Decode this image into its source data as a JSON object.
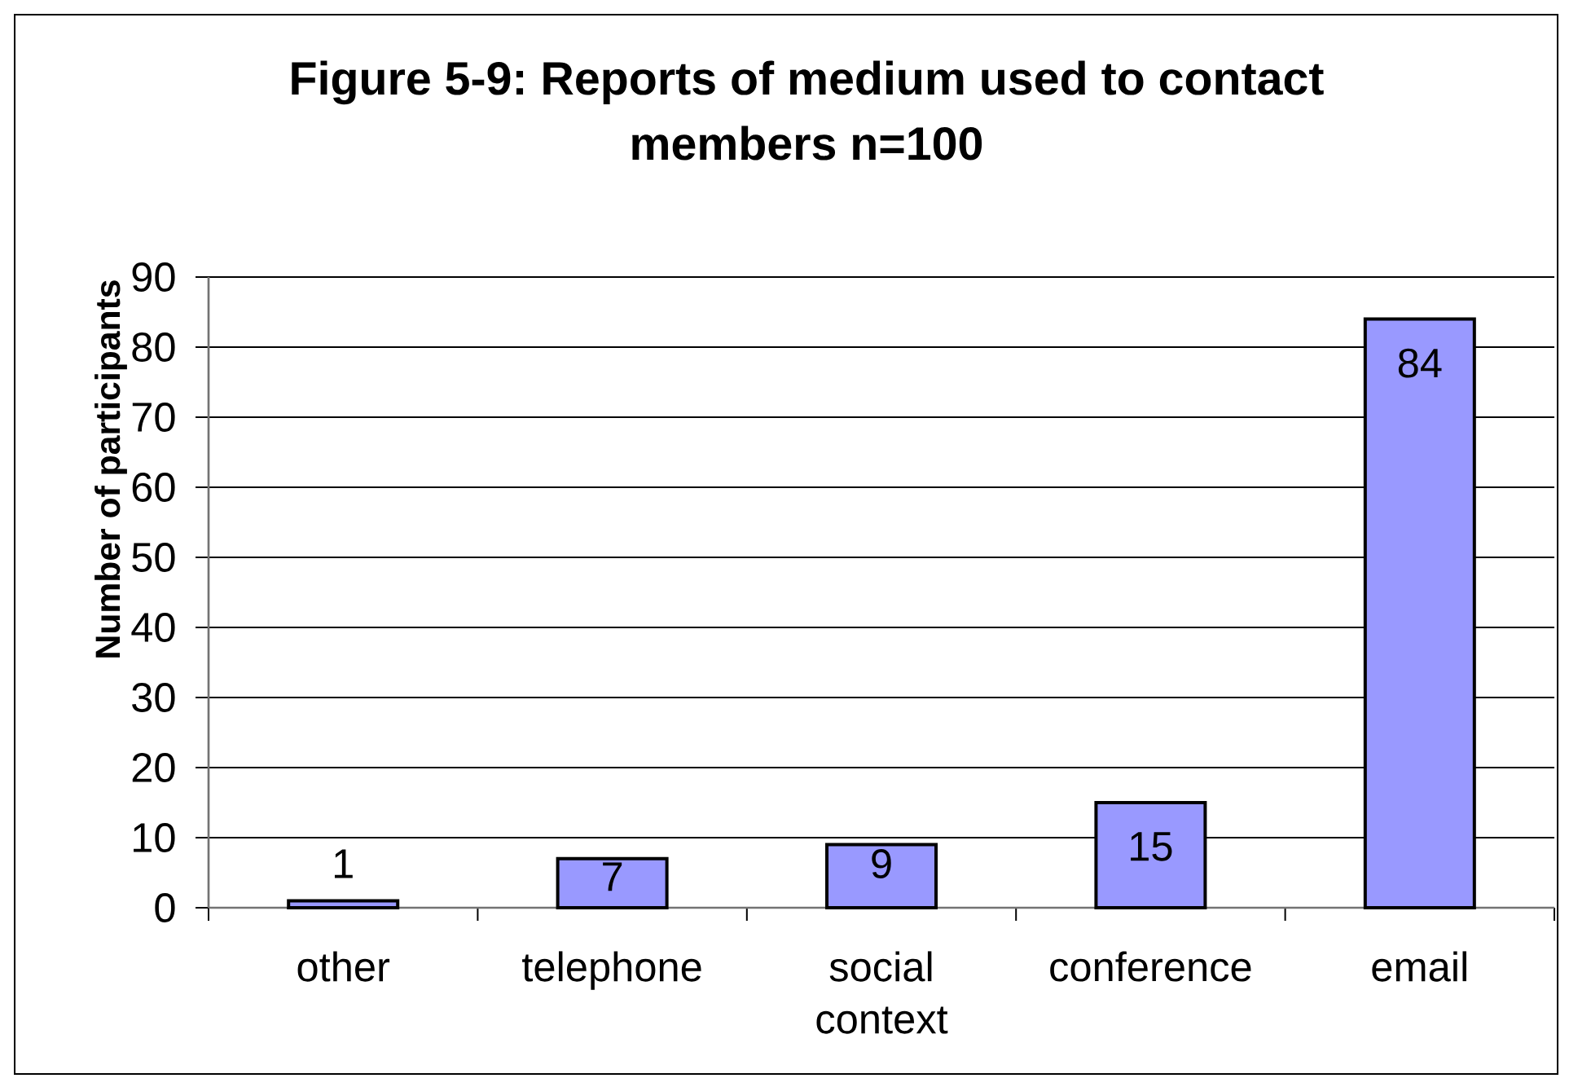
{
  "chart_data": {
    "type": "bar",
    "title": "Figure 5-9: Reports of medium used to contact members n=100",
    "ylabel": "Number of participants",
    "categories": [
      "other",
      "telephone",
      "social context",
      "conference",
      "email"
    ],
    "values": [
      1,
      7,
      9,
      15,
      84
    ],
    "color": "#9999ff",
    "ylim": [
      0,
      90
    ],
    "yticks": [
      0,
      10,
      20,
      30,
      40,
      50,
      60,
      70,
      80,
      90
    ],
    "grid": "y",
    "data_labels": true
  }
}
